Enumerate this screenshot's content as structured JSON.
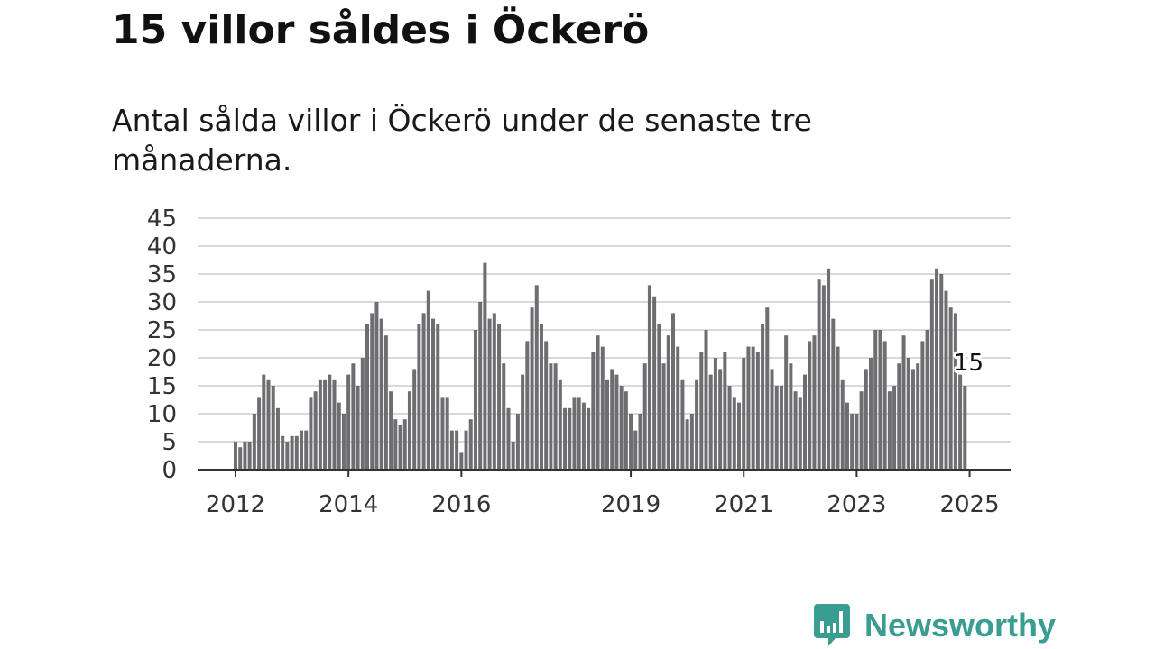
{
  "title": "15 villor såldes i Öckerö",
  "subtitle": "Antal sålda villor i Öckerö under de senaste tre månaderna.",
  "brand": {
    "name": "Newsworthy",
    "color": "#3a9d91"
  },
  "colors": {
    "bar": "#6d6d72",
    "highlight": "#1aa192",
    "grid": "#d9d9d9",
    "axis": "#333333"
  },
  "chart_data": {
    "type": "bar",
    "title": "",
    "xlabel": "",
    "ylabel": "",
    "ylim": [
      0,
      45
    ],
    "yticks": [
      0,
      5,
      10,
      15,
      20,
      25,
      30,
      35,
      40,
      45
    ],
    "grid": true,
    "x_start": "2012-01",
    "frequency": "monthly",
    "xtick_labels": [
      {
        "date": "2012-01",
        "label": "2012"
      },
      {
        "date": "2014-01",
        "label": "2014"
      },
      {
        "date": "2016-01",
        "label": "2016"
      },
      {
        "date": "2019-01",
        "label": "2019"
      },
      {
        "date": "2021-01",
        "label": "2021"
      },
      {
        "date": "2023-01",
        "label": "2023"
      },
      {
        "date": "2025-01",
        "label": "2025"
      }
    ],
    "values": [
      5,
      4,
      5,
      5,
      10,
      13,
      17,
      16,
      15,
      11,
      6,
      5,
      6,
      6,
      7,
      7,
      13,
      14,
      16,
      16,
      17,
      16,
      12,
      10,
      17,
      19,
      15,
      20,
      26,
      28,
      30,
      27,
      24,
      14,
      9,
      8,
      9,
      14,
      18,
      26,
      28,
      32,
      27,
      26,
      13,
      13,
      7,
      7,
      3,
      7,
      9,
      25,
      30,
      37,
      27,
      28,
      26,
      19,
      11,
      5,
      10,
      17,
      23,
      29,
      33,
      26,
      23,
      19,
      19,
      16,
      11,
      11,
      13,
      13,
      12,
      11,
      21,
      24,
      22,
      16,
      18,
      17,
      15,
      14,
      10,
      7,
      10,
      19,
      33,
      31,
      26,
      19,
      24,
      28,
      22,
      16,
      9,
      10,
      16,
      21,
      25,
      17,
      20,
      18,
      21,
      15,
      13,
      12,
      20,
      22,
      22,
      21,
      26,
      29,
      18,
      15,
      15,
      24,
      19,
      14,
      13,
      17,
      23,
      24,
      34,
      33,
      36,
      27,
      22,
      16,
      12,
      10,
      10,
      14,
      18,
      20,
      25,
      25,
      23,
      14,
      15,
      19,
      24,
      20,
      18,
      19,
      23,
      25,
      34,
      36,
      35,
      32,
      29,
      28,
      17,
      15
    ],
    "highlight": {
      "date": "2025-01",
      "value": 15,
      "label": "15"
    }
  }
}
